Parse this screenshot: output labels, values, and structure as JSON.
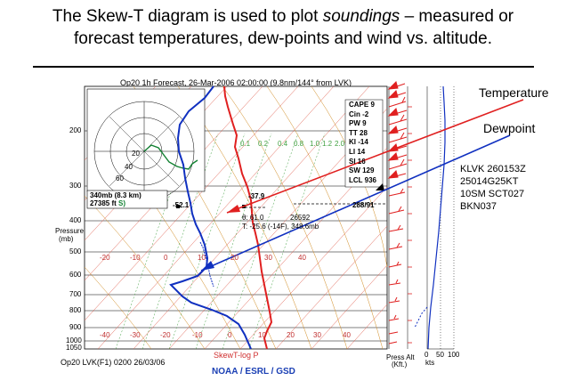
{
  "headline": {
    "line1_pre": "The Skew-T diagram is used to plot ",
    "line1_em": "soundings",
    "line1_post": " – measured or",
    "line2": "forecast temperatures, dew-points and wind vs. altitude."
  },
  "sounding": {
    "title": "Op20 1h Forecast, 26-Mar-2006 02:00:00 (9.8nm/144° from LVK)",
    "pressure_axis_label": [
      "Pressure",
      "(mb)"
    ],
    "pressure_ticks": [
      "200",
      "300",
      "400",
      "500",
      "600",
      "700",
      "800",
      "900",
      "1000",
      "1050"
    ],
    "bottom_temp_ticks": [
      "-40",
      "-30",
      "-20",
      "-10",
      "0",
      "10",
      "20",
      "30",
      "40"
    ],
    "upper_temp_ticks": [
      "-20",
      "-10",
      "0",
      "10",
      "20",
      "30",
      "40"
    ],
    "mixing_ratio_ticks": [
      "0.1",
      "0.2",
      "0.4",
      "0.8",
      "1.0",
      "1.2",
      "2.0"
    ],
    "indices": [
      {
        "label": "CAPE 9"
      },
      {
        "label": "Cin -2"
      },
      {
        "label": "PW 9"
      },
      {
        "label": "TT 28"
      },
      {
        "label": "KI -14"
      },
      {
        "label": "LI 14"
      },
      {
        "label": "SI 16"
      },
      {
        "label": "SW 129"
      },
      {
        "label": "LCL 936"
      }
    ],
    "cursor_box": [
      "340mb (8.3 km)",
      "27385 ft"
    ],
    "cursor_box_extra": "S)",
    "cursor_temp": "-52.1",
    "temp_marker": "-37.9",
    "wind_marker": "288/91",
    "readout_theta": "θ: 61.0",
    "readout_height": "26592",
    "readout_temp": "T: -25.6 (-14F), 348.6mb",
    "hodograph_rings": [
      "20",
      "40",
      "60"
    ],
    "wind_axis_ticks": [
      "0",
      "50",
      "100"
    ],
    "wind_axis_unit": "kts",
    "press_alt_label": [
      "Press Alt",
      "(Kft.)"
    ],
    "footer_left": "Op20 LVK(F1) 0200 26/03/06",
    "footer_center": "NOAA / ESRL / GSD",
    "diagram_type": "SkewT-log P"
  },
  "annotations": {
    "temperature_label": "Temperature",
    "dewpoint_label": "Dewpoint",
    "temperature_color": "#e02020",
    "dewpoint_color": "#1030c0",
    "metar_lines": [
      "KLVK 260153Z",
      "25014G25KT",
      "10SM SCT027",
      "BKN037"
    ]
  }
}
